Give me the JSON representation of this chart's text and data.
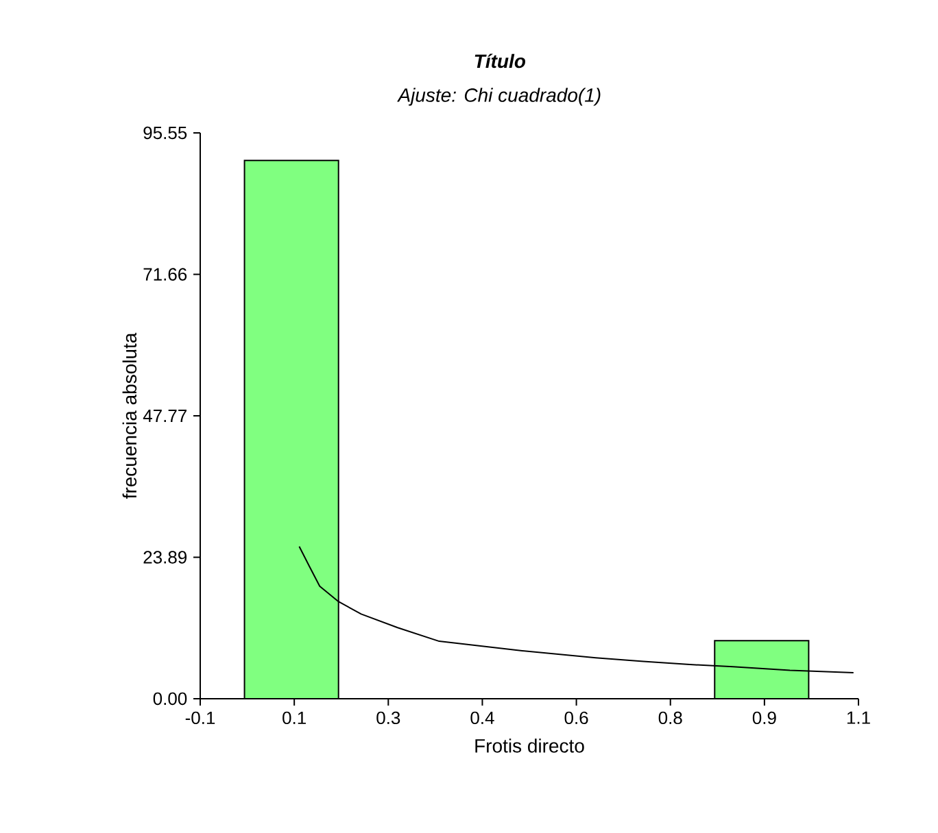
{
  "chart_data": {
    "type": "histogram",
    "title": "**Título**",
    "subtitle": "Ajuste: Chi cuadrado(1)",
    "xlabel": "Frotis directo",
    "ylabel": "frecuencia absoluta",
    "bins": [
      0,
      0.17,
      0.34,
      0.51,
      0.68,
      0.85,
      1.02
    ],
    "values": [
      90.9,
      0,
      0,
      0,
      0,
      9.8
    ],
    "color": "#80ff80",
    "series": [
      {
        "type": "line",
        "color": "#000000",
        "x": [
          0.099,
          0.117,
          0.136,
          0.17,
          0.211,
          0.277,
          0.352,
          0.502,
          0.635,
          0.721,
          0.8,
          0.883,
          0.986,
          1.101
        ],
        "values": [
          25.7,
          22.4,
          19.0,
          16.4,
          14.3,
          12.0,
          9.7,
          8.1,
          6.9,
          6.3,
          5.8,
          5.4,
          4.8,
          4.4
        ]
      }
    ],
    "xlim": [
      -0.08,
      1.11
    ],
    "xticks": [
      {
        "value": -0.08,
        "label": "-0.1"
      },
      {
        "value": 0.09,
        "label": "0.1"
      },
      {
        "value": 0.26,
        "label": "0.3"
      },
      {
        "value": 0.43,
        "label": "0.4"
      },
      {
        "value": 0.6,
        "label": "0.6"
      },
      {
        "value": 0.77,
        "label": "0.8"
      },
      {
        "value": 0.94,
        "label": "0.9"
      },
      {
        "value": 1.11,
        "label": "1.1"
      }
    ],
    "ylim": [
      0,
      95.55
    ],
    "yticks": [
      {
        "value": 0,
        "label": "0.00"
      },
      23.89,
      47.77,
      71.66,
      95.55
    ],
    "marker": "none",
    "line_style": "solid"
  }
}
